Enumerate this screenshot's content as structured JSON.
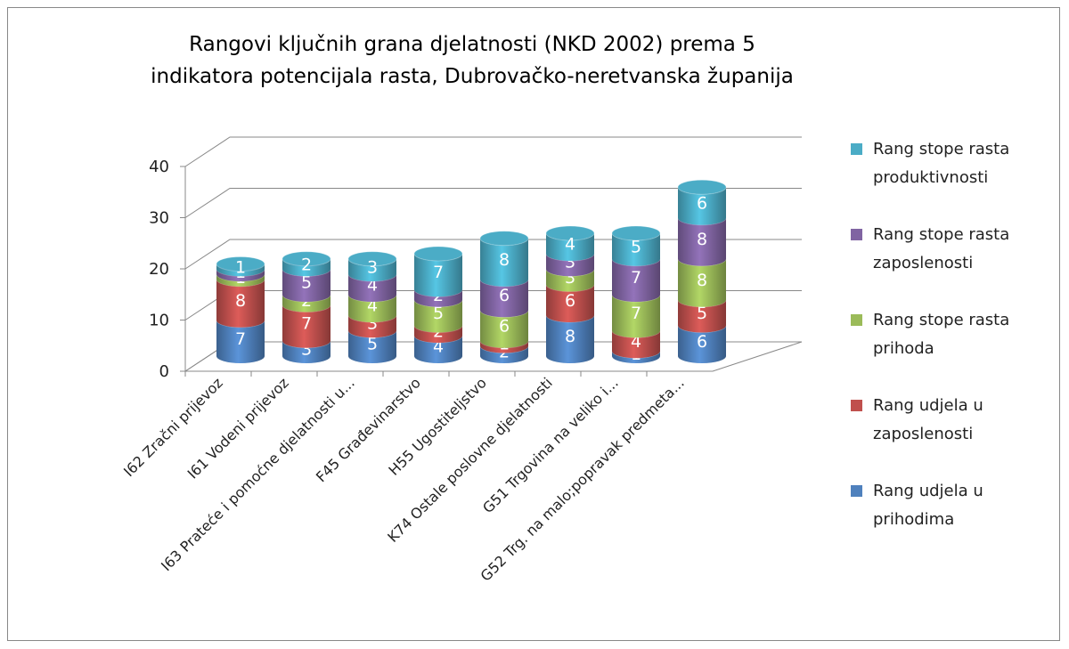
{
  "chart_data": {
    "type": "bar3d_stacked",
    "title": "Rangovi ključnih grana djelatnosti (NKD 2002) prema 5 indikatora potencijala rasta, Dubrovačko-neretvanska županija",
    "categories": [
      "I62 Zračni prijevoz",
      "I61 Vodeni prijevoz",
      "I63 Prateće i pomoćne djelatnosti u...",
      "F45 Građevinarstvo",
      "H55 Ugostiteljstvo",
      "K74 Ostale poslovne djelatnosti",
      "G51 Trgovina na veliko i...",
      "G52 Trg. na malo;popravak predmeta..."
    ],
    "series": [
      {
        "name": "Rang udjela u prihodima",
        "color": "#4f81bd",
        "values": [
          7,
          3,
          5,
          4,
          2,
          8,
          1,
          6
        ]
      },
      {
        "name": "Rang udjela u zaposlenosti",
        "color": "#c0504d",
        "values": [
          8,
          7,
          3,
          2,
          1,
          6,
          4,
          5
        ]
      },
      {
        "name": "Rang stope rasta prihoda",
        "color": "#9bbb59",
        "values": [
          1,
          2,
          4,
          5,
          6,
          3,
          7,
          8
        ]
      },
      {
        "name": "Rang stope rasta zaposlenosti",
        "color": "#8064a2",
        "values": [
          1,
          5,
          4,
          2,
          6,
          3,
          7,
          8
        ]
      },
      {
        "name": "Rang stope rasta produktivnosti",
        "color": "#4bacc6",
        "values": [
          1,
          2,
          3,
          7,
          8,
          4,
          5,
          6
        ]
      }
    ],
    "ylim": [
      0,
      40
    ],
    "yticks": [
      0,
      10,
      20,
      30,
      40
    ],
    "grid": true
  }
}
